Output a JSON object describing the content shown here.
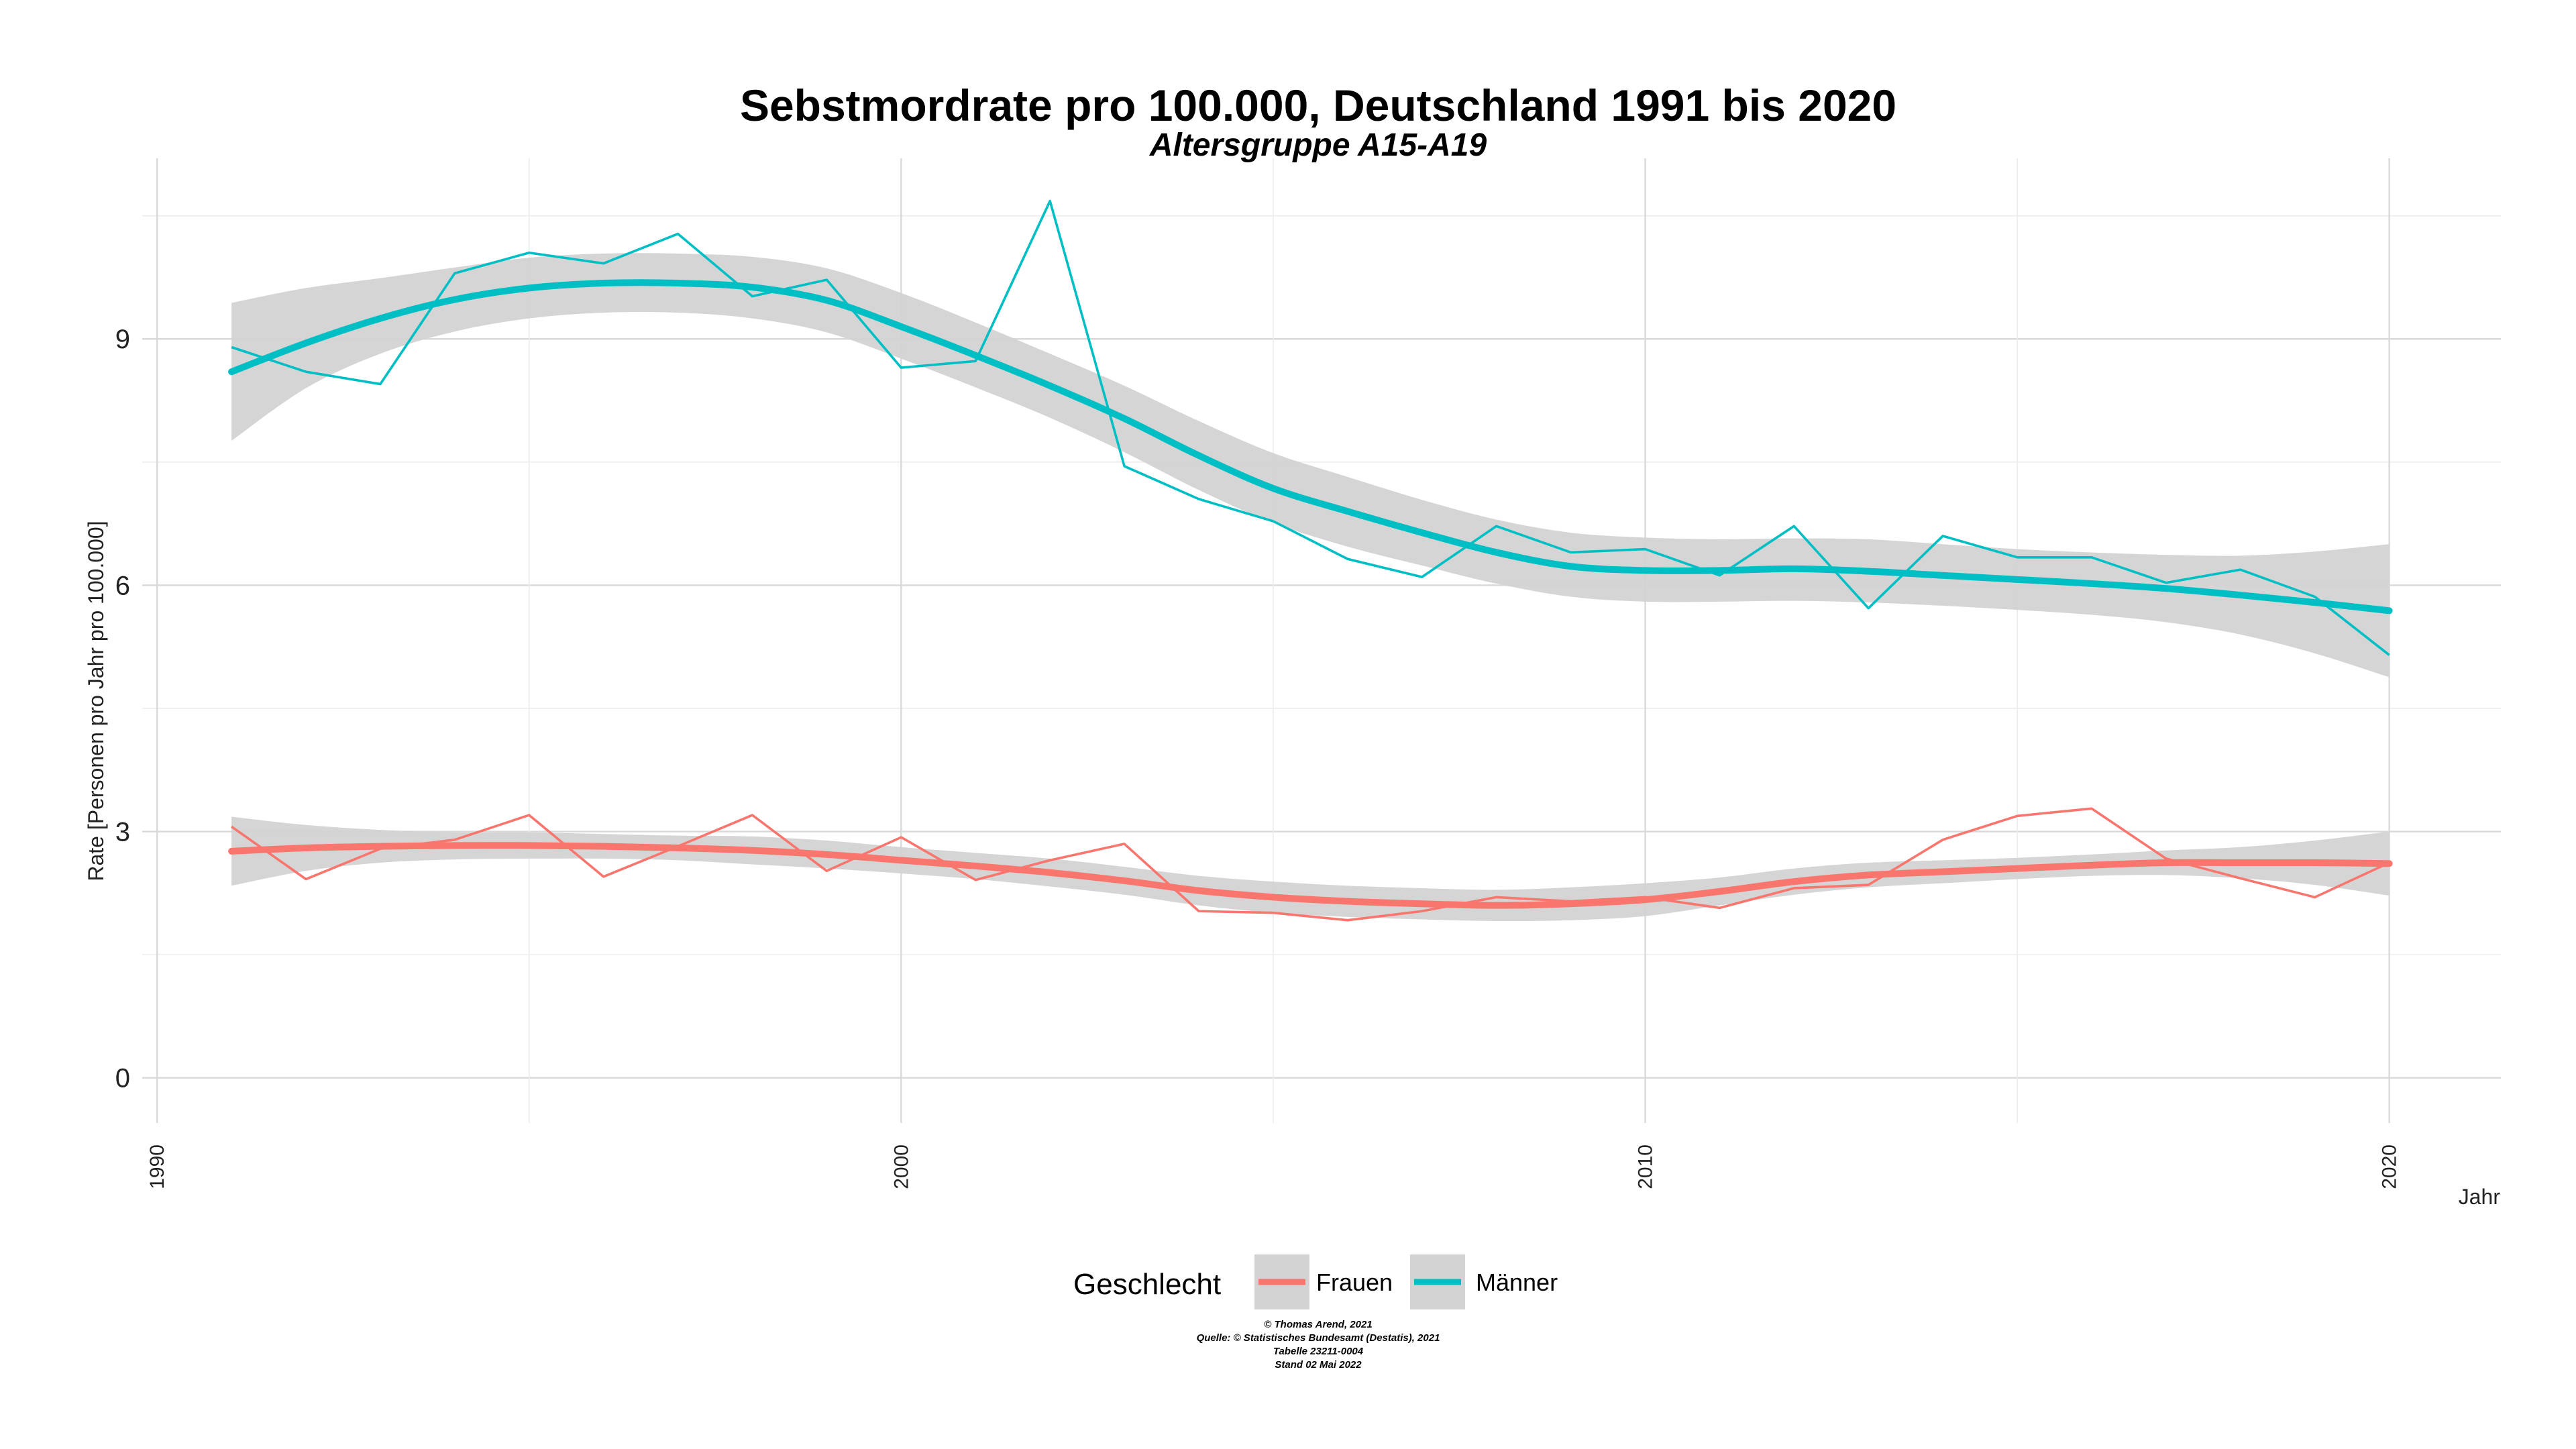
{
  "chart_data": {
    "type": "line",
    "title": "Sebstmordrate pro 100.000, Deutschland  1991 bis 2020",
    "subtitle": "Altersgruppe A15-A19",
    "xlabel": "Jahr",
    "ylabel": "Rate [Personen pro Jahr pro 100.000]",
    "xlim": [
      1989.8,
      2021.5
    ],
    "ylim": [
      -0.55,
      11.2
    ],
    "x_ticks": [
      1990,
      2000,
      2010,
      2020
    ],
    "x_tick_labels": [
      "1990",
      "2000",
      "2010",
      "2020"
    ],
    "y_ticks": [
      0,
      3,
      6,
      9
    ],
    "y_tick_labels": [
      "0",
      "3",
      "6",
      "9"
    ],
    "grid": true,
    "legend": {
      "title": "Geschlecht",
      "position": "bottom",
      "entries": [
        "Frauen",
        "Männer"
      ]
    },
    "x": [
      1991,
      1992,
      1993,
      1994,
      1995,
      1996,
      1997,
      1998,
      1999,
      2000,
      2001,
      2002,
      2003,
      2004,
      2005,
      2006,
      2007,
      2008,
      2009,
      2010,
      2011,
      2012,
      2013,
      2014,
      2015,
      2016,
      2017,
      2018,
      2019,
      2020
    ],
    "series": [
      {
        "name": "Frauen",
        "color": "#F8766D",
        "values": [
          3.06,
          2.42,
          2.79,
          2.9,
          3.2,
          2.45,
          2.82,
          3.2,
          2.52,
          2.93,
          2.41,
          2.65,
          2.85,
          2.03,
          2.01,
          1.92,
          2.03,
          2.2,
          2.15,
          2.2,
          2.07,
          2.31,
          2.35,
          2.9,
          3.19,
          3.28,
          2.67,
          2.43,
          2.2,
          2.62
        ],
        "smooth": [
          2.76,
          2.8,
          2.82,
          2.83,
          2.83,
          2.82,
          2.8,
          2.77,
          2.72,
          2.65,
          2.58,
          2.5,
          2.4,
          2.28,
          2.2,
          2.15,
          2.12,
          2.1,
          2.12,
          2.17,
          2.27,
          2.39,
          2.47,
          2.51,
          2.55,
          2.59,
          2.62,
          2.62,
          2.62,
          2.61
        ],
        "band_low": [
          2.34,
          2.52,
          2.62,
          2.66,
          2.67,
          2.67,
          2.65,
          2.6,
          2.55,
          2.49,
          2.42,
          2.33,
          2.23,
          2.1,
          2.01,
          1.96,
          1.93,
          1.91,
          1.92,
          1.97,
          2.1,
          2.23,
          2.32,
          2.37,
          2.42,
          2.46,
          2.47,
          2.43,
          2.35,
          2.22
        ],
        "band_high": [
          3.18,
          3.08,
          3.02,
          2.99,
          2.99,
          2.97,
          2.95,
          2.94,
          2.89,
          2.81,
          2.74,
          2.67,
          2.57,
          2.46,
          2.39,
          2.34,
          2.31,
          2.29,
          2.32,
          2.37,
          2.44,
          2.55,
          2.62,
          2.65,
          2.68,
          2.72,
          2.77,
          2.81,
          2.89,
          3.0
        ]
      },
      {
        "name": "Männer",
        "color": "#00BFC4",
        "values": [
          8.9,
          8.6,
          8.45,
          9.8,
          10.05,
          9.92,
          10.28,
          9.52,
          9.72,
          8.65,
          8.73,
          10.68,
          7.45,
          7.05,
          6.78,
          6.32,
          6.1,
          6.72,
          6.4,
          6.44,
          6.12,
          6.72,
          5.72,
          6.6,
          6.34,
          6.34,
          6.03,
          6.19,
          5.86,
          5.15
        ],
        "smooth": [
          8.6,
          8.95,
          9.25,
          9.48,
          9.62,
          9.68,
          9.68,
          9.63,
          9.47,
          9.15,
          8.8,
          8.43,
          8.03,
          7.58,
          7.18,
          6.9,
          6.64,
          6.4,
          6.23,
          6.18,
          6.18,
          6.2,
          6.17,
          6.12,
          6.07,
          6.02,
          5.96,
          5.88,
          5.79,
          5.69
        ],
        "band_low": [
          7.76,
          8.4,
          8.82,
          9.09,
          9.25,
          9.32,
          9.32,
          9.25,
          9.08,
          8.76,
          8.41,
          8.04,
          7.62,
          7.16,
          6.76,
          6.47,
          6.24,
          6.02,
          5.86,
          5.8,
          5.8,
          5.81,
          5.79,
          5.75,
          5.7,
          5.64,
          5.55,
          5.4,
          5.17,
          4.88
        ],
        "band_high": [
          9.44,
          9.62,
          9.74,
          9.87,
          9.99,
          10.04,
          10.04,
          10.0,
          9.86,
          9.56,
          9.2,
          8.82,
          8.43,
          8.0,
          7.61,
          7.32,
          7.04,
          6.8,
          6.64,
          6.58,
          6.56,
          6.57,
          6.56,
          6.5,
          6.44,
          6.4,
          6.37,
          6.36,
          6.41,
          6.5
        ]
      }
    ],
    "band_color": "#d3d3d3",
    "caption": [
      "© Thomas Arend, 2021",
      "Quelle: © Statistisches Bundesamt (Destatis), 2021",
      "Tabelle 23211-0004",
      "Stand 02 Mai 2022"
    ]
  }
}
